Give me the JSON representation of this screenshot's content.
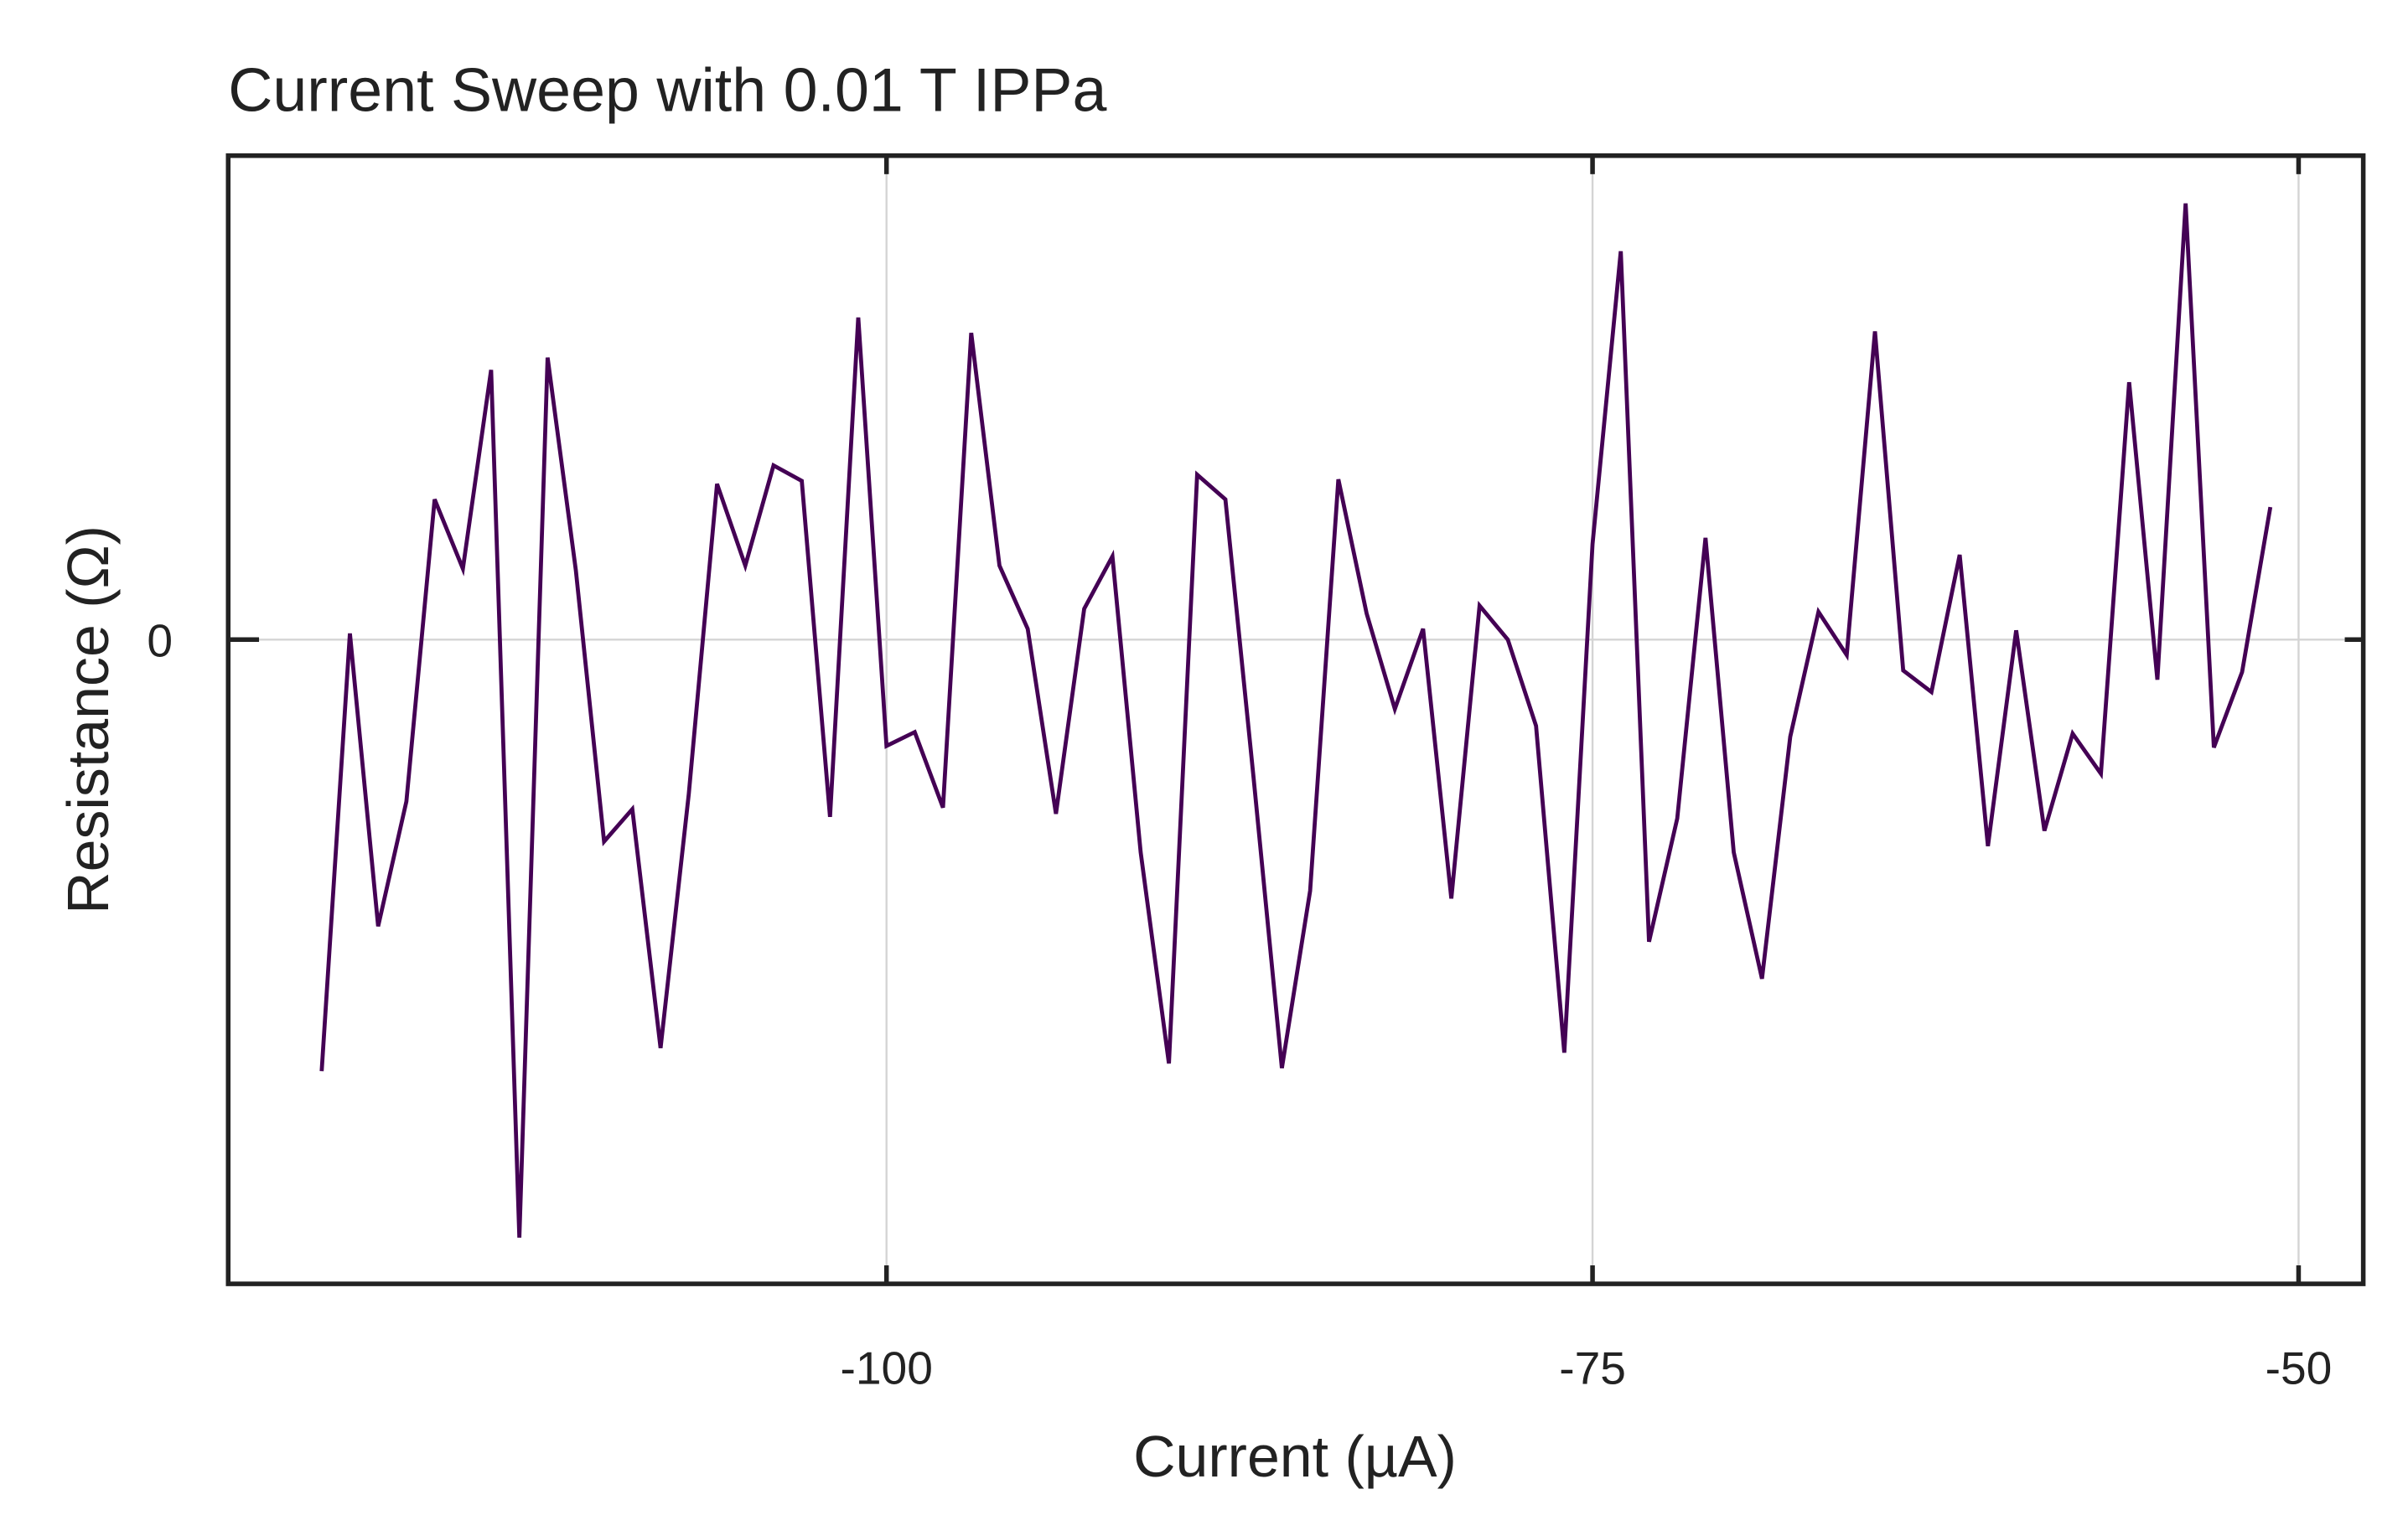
{
  "chart_data": {
    "type": "line",
    "title": "Current Sweep with 0.01 T IPPa",
    "x_label": "Current (µA)",
    "y_label": "Resistance (Ω)",
    "x": [
      -120,
      -119,
      -118,
      -117,
      -116,
      -115,
      -114,
      -113,
      -112,
      -111,
      -110,
      -109,
      -108,
      -107,
      -106,
      -105,
      -104,
      -103,
      -102,
      -101,
      -100,
      -99,
      -98,
      -97,
      -96,
      -95,
      -94,
      -93,
      -92,
      -91,
      -90,
      -89,
      -88,
      -87,
      -86,
      -85,
      -84,
      -83,
      -82,
      -81,
      -80,
      -79,
      -78,
      -77,
      -76,
      -75,
      -74,
      -73,
      -72,
      -71,
      -70,
      -69,
      -68,
      -67,
      -66,
      -65,
      -64,
      -63,
      -62,
      -61,
      -60,
      -59,
      -58,
      -57,
      -56,
      -55,
      -54,
      -53,
      -52,
      -51
    ],
    "values": [
      -2.8,
      0.04,
      -1.86,
      -1.05,
      0.91,
      0.46,
      1.75,
      -3.88,
      1.83,
      0.45,
      -1.31,
      -1.1,
      -2.65,
      -1.0,
      1.01,
      0.48,
      1.13,
      1.03,
      -1.15,
      2.09,
      -0.69,
      -0.6,
      -1.09,
      1.99,
      0.48,
      0.07,
      -1.13,
      0.2,
      0.54,
      -1.38,
      -2.75,
      1.07,
      0.91,
      -0.9,
      -2.78,
      -1.63,
      1.04,
      0.17,
      -0.45,
      0.07,
      -1.68,
      0.22,
      0.0,
      -0.56,
      -2.68,
      0.62,
      2.52,
      -1.96,
      -1.16,
      0.66,
      -1.38,
      -2.2,
      -0.63,
      0.18,
      -0.1,
      2.0,
      -0.2,
      -0.34,
      0.55,
      -1.34,
      0.06,
      -1.24,
      -0.61,
      -0.87,
      1.67,
      -0.26,
      2.83,
      -0.7,
      -0.21,
      0.86
    ],
    "color": "#440154",
    "xlim": [
      -123.31,
      -47.71
    ],
    "xticks": [
      -100,
      -75,
      -50
    ],
    "ylim": [
      -4.18,
      3.14
    ],
    "yticks": [
      0
    ],
    "grid": true
  }
}
